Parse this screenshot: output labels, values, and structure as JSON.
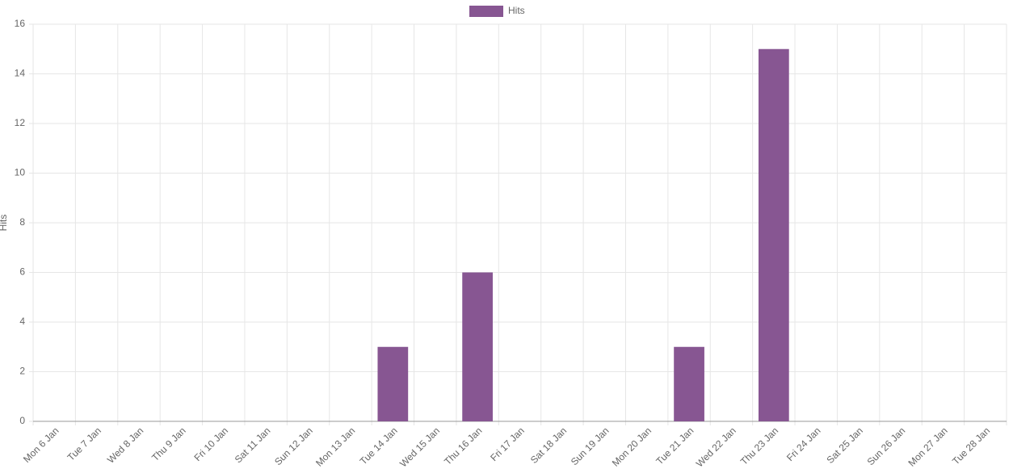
{
  "chart_data": {
    "type": "bar",
    "y_axis_label": "Hits",
    "categories": [
      "Mon 6 Jan",
      "Tue 7 Jan",
      "Wed 8 Jan",
      "Thu 9 Jan",
      "Fri 10 Jan",
      "Sat 11 Jan",
      "Sun 12 Jan",
      "Mon 13 Jan",
      "Tue 14 Jan",
      "Wed 15 Jan",
      "Thu 16 Jan",
      "Fri 17 Jan",
      "Sat 18 Jan",
      "Sun 19 Jan",
      "Mon 20 Jan",
      "Tue 21 Jan",
      "Wed 22 Jan",
      "Thu 23 Jan",
      "Fri 24 Jan",
      "Sat 25 Jan",
      "Sun 26 Jan",
      "Mon 27 Jan",
      "Tue 28 Jan"
    ],
    "series": [
      {
        "name": "Hits",
        "color": "#875692",
        "values": [
          0,
          0,
          0,
          0,
          0,
          0,
          0,
          0,
          3,
          0,
          6,
          0,
          0,
          0,
          0,
          3,
          0,
          15,
          0,
          0,
          0,
          0,
          0
        ]
      }
    ],
    "ylim": [
      0,
      16
    ],
    "yticks": [
      0,
      2,
      4,
      6,
      8,
      10,
      12,
      14,
      16
    ],
    "grid": true,
    "legend": "top"
  }
}
